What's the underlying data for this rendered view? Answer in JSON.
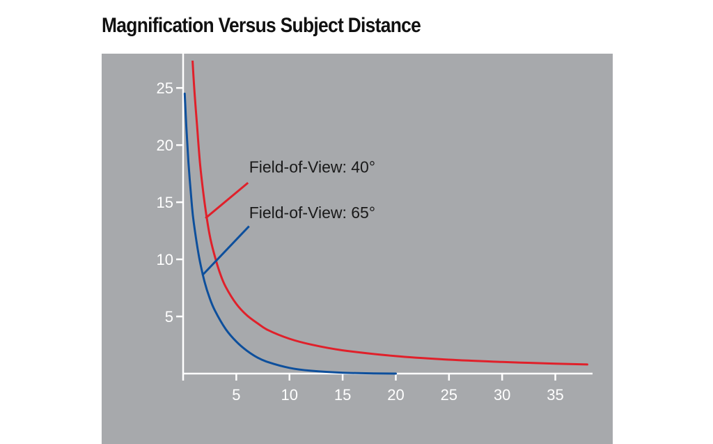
{
  "chart_data": {
    "type": "line",
    "title": "Magnification Versus Subject Distance",
    "xlabel": "",
    "ylabel": "",
    "xlim": [
      0,
      38.5
    ],
    "ylim": [
      0,
      28
    ],
    "x_ticks": [
      5,
      10,
      15,
      20,
      25,
      30,
      35
    ],
    "y_ticks": [
      5,
      10,
      15,
      20,
      25
    ],
    "grid": false,
    "series": [
      {
        "name": "Field-of-View: 40°",
        "color": "#e0202a",
        "x": [
          0.8,
          1.0,
          1.3,
          1.6,
          2.0,
          2.5,
          3.0,
          3.5,
          4.0,
          5.0,
          6.0,
          7.0,
          8.0,
          10.0,
          12.0,
          15.0,
          20.0,
          25.0,
          30.0,
          35.0,
          38.0
        ],
        "values": [
          29,
          25.6,
          21.8,
          18.3,
          15.1,
          12.1,
          10.2,
          8.7,
          7.6,
          6.1,
          5.1,
          4.4,
          3.8,
          3.05,
          2.55,
          2.04,
          1.53,
          1.22,
          1.02,
          0.87,
          0.8
        ]
      },
      {
        "name": "Field-of-View: 65°",
        "color": "#0d4f9c",
        "x": [
          0.15,
          0.3,
          0.5,
          0.8,
          1.0,
          1.5,
          2.0,
          2.5,
          3.0,
          4.0,
          5.0,
          6.0,
          7.0,
          8.0,
          10.0,
          12.0,
          15.0,
          18.0,
          20.0
        ],
        "values": [
          24.5,
          21.6,
          18.5,
          15.0,
          13.2,
          10.2,
          8.1,
          6.6,
          5.5,
          3.9,
          2.8,
          2.0,
          1.4,
          1.0,
          0.5,
          0.25,
          0.08,
          0.02,
          0.0
        ]
      }
    ],
    "annotations": [
      {
        "text": "Field-of-View: 40°",
        "color": "#e0202a",
        "text_x": 6.2,
        "text_y": 17.6,
        "line_from": [
          6.1,
          16.7
        ],
        "line_to": [
          2.1,
          13.6
        ]
      },
      {
        "text": "Field-of-View: 65°",
        "color": "#0d4f9c",
        "text_x": 6.2,
        "text_y": 13.6,
        "line_from": [
          6.2,
          12.9
        ],
        "line_to": [
          1.8,
          8.6
        ]
      }
    ],
    "colors": {
      "panel_background": "#a7a9ac",
      "axis": "#ffffff",
      "tick_label": "#ffffff"
    }
  }
}
